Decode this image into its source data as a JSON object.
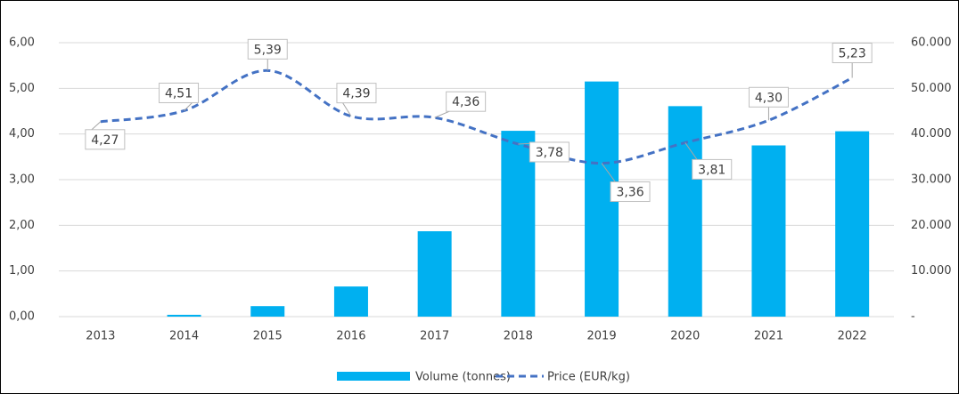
{
  "chart_data": {
    "type": "bar_line",
    "categories": [
      "2013",
      "2014",
      "2015",
      "2016",
      "2017",
      "2018",
      "2019",
      "2020",
      "2021",
      "2022"
    ],
    "series": [
      {
        "name": "Volume (tonnes)",
        "type": "bar",
        "axis": "y2",
        "color": "#00b0f0",
        "values": [
          0,
          400,
          2300,
          6600,
          18700,
          40700,
          51500,
          46100,
          37500,
          40600
        ]
      },
      {
        "name": "Price (EUR/kg)",
        "type": "line",
        "axis": "y",
        "color": "#4472c4",
        "dashed": true,
        "values": [
          4.27,
          4.51,
          5.39,
          4.39,
          4.36,
          3.78,
          3.36,
          3.81,
          4.3,
          5.23
        ],
        "value_labels": [
          "4,27",
          "4,51",
          "5,39",
          "4,39",
          "4,36",
          "3,78",
          "3,36",
          "3,81",
          "4,30",
          "5,23"
        ]
      }
    ],
    "ylim": [
      0,
      6
    ],
    "yticks": [
      {
        "value": 0,
        "label": "0,00"
      },
      {
        "value": 1,
        "label": "1,00"
      },
      {
        "value": 2,
        "label": "2,00"
      },
      {
        "value": 3,
        "label": "3,00"
      },
      {
        "value": 4,
        "label": "4,00"
      },
      {
        "value": 5,
        "label": "5,00"
      },
      {
        "value": 6,
        "label": "6,00"
      }
    ],
    "y2lim": [
      0,
      60000
    ],
    "y2ticks": [
      {
        "value": 0,
        "label": "-"
      },
      {
        "value": 10000,
        "label": "10.000"
      },
      {
        "value": 20000,
        "label": "20.000"
      },
      {
        "value": 30000,
        "label": "30.000"
      },
      {
        "value": 40000,
        "label": "40.000"
      },
      {
        "value": 50000,
        "label": "50.000"
      },
      {
        "value": 60000,
        "label": "60.000"
      }
    ],
    "grid": true,
    "legend": "bottom"
  }
}
